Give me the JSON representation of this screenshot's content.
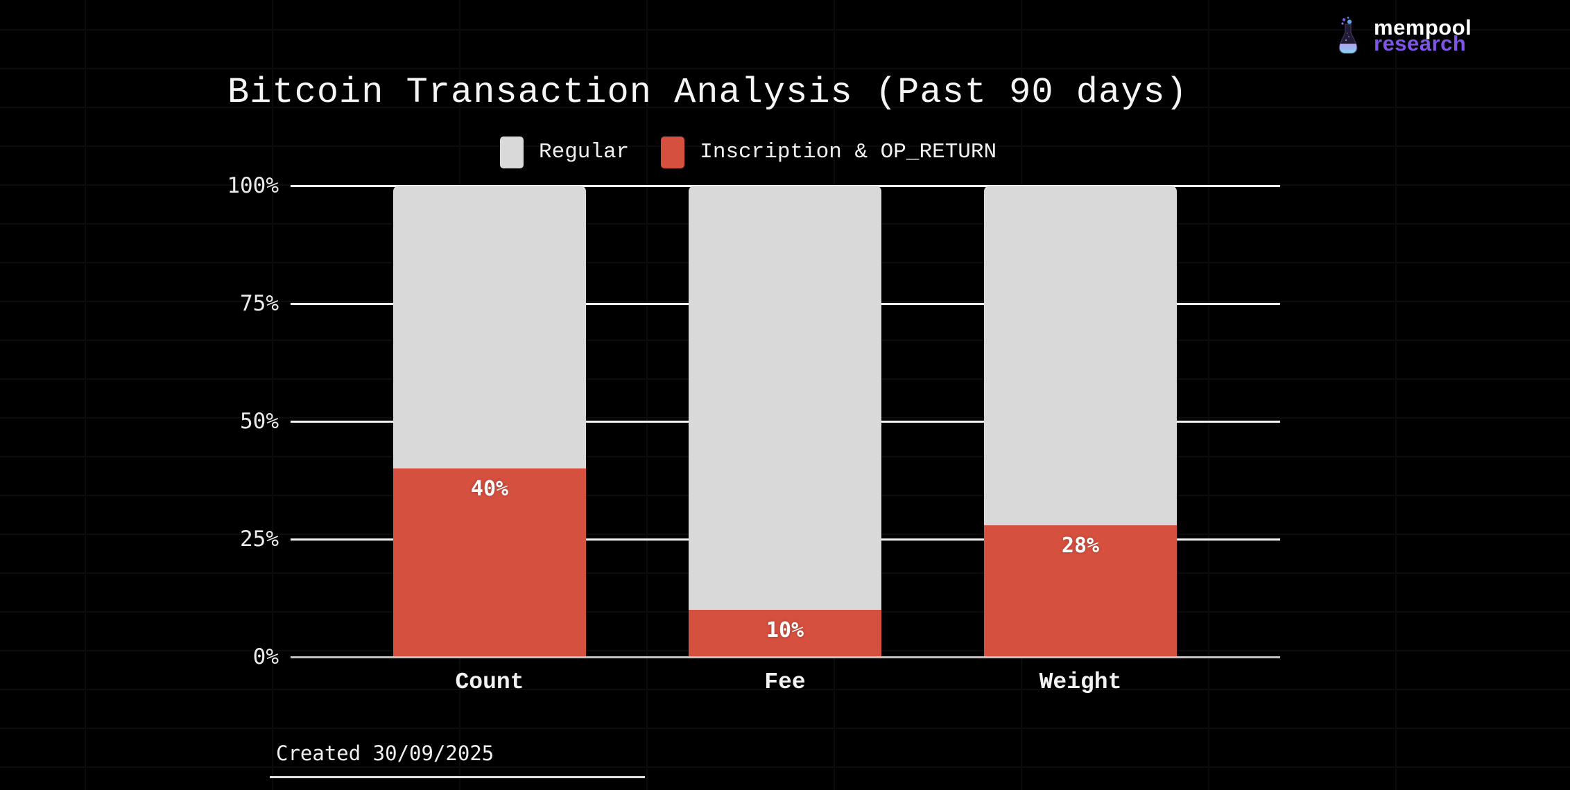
{
  "title": "Bitcoin Transaction Analysis (Past 90 days)",
  "logo": {
    "line1": "mempool",
    "line2": "research",
    "line2_color": "#7e55e8"
  },
  "footer": {
    "created": "Created 30/09/2025"
  },
  "chart_data": {
    "type": "bar",
    "stacked": true,
    "title": "Bitcoin Transaction Analysis (Past 90 days)",
    "categories": [
      "Count",
      "Fee",
      "Weight"
    ],
    "series": [
      {
        "name": "Regular",
        "color": "#d9d9d9",
        "values": [
          60,
          90,
          72
        ]
      },
      {
        "name": "Inscription & OP_RETURN",
        "color": "#d5503f",
        "values": [
          40,
          10,
          28
        ]
      }
    ],
    "bar_value_labels": [
      "40%",
      "10%",
      "28%"
    ],
    "legend": [
      {
        "label": "Regular",
        "color": "#d9d9d9"
      },
      {
        "label": "Inscription & OP_RETURN",
        "color": "#d5503f"
      }
    ],
    "legend_position": "top",
    "xlabel": "",
    "ylabel": "",
    "ylim": [
      0,
      100
    ],
    "yticks": [
      {
        "value": 0,
        "label": "0%"
      },
      {
        "value": 25,
        "label": "25%"
      },
      {
        "value": 50,
        "label": "50%"
      },
      {
        "value": 75,
        "label": "75%"
      },
      {
        "value": 100,
        "label": "100%"
      }
    ],
    "grid": true
  },
  "colors": {
    "background": "#000000",
    "background_grid": "#0c0c0c",
    "gridline": "#f5f5f5",
    "axis_line": "#c7c1bf",
    "text": "#f2f2f2",
    "inscription_red": "#d5503f",
    "regular_gray": "#d9d9d9",
    "logo_purple": "#7e55e8"
  }
}
